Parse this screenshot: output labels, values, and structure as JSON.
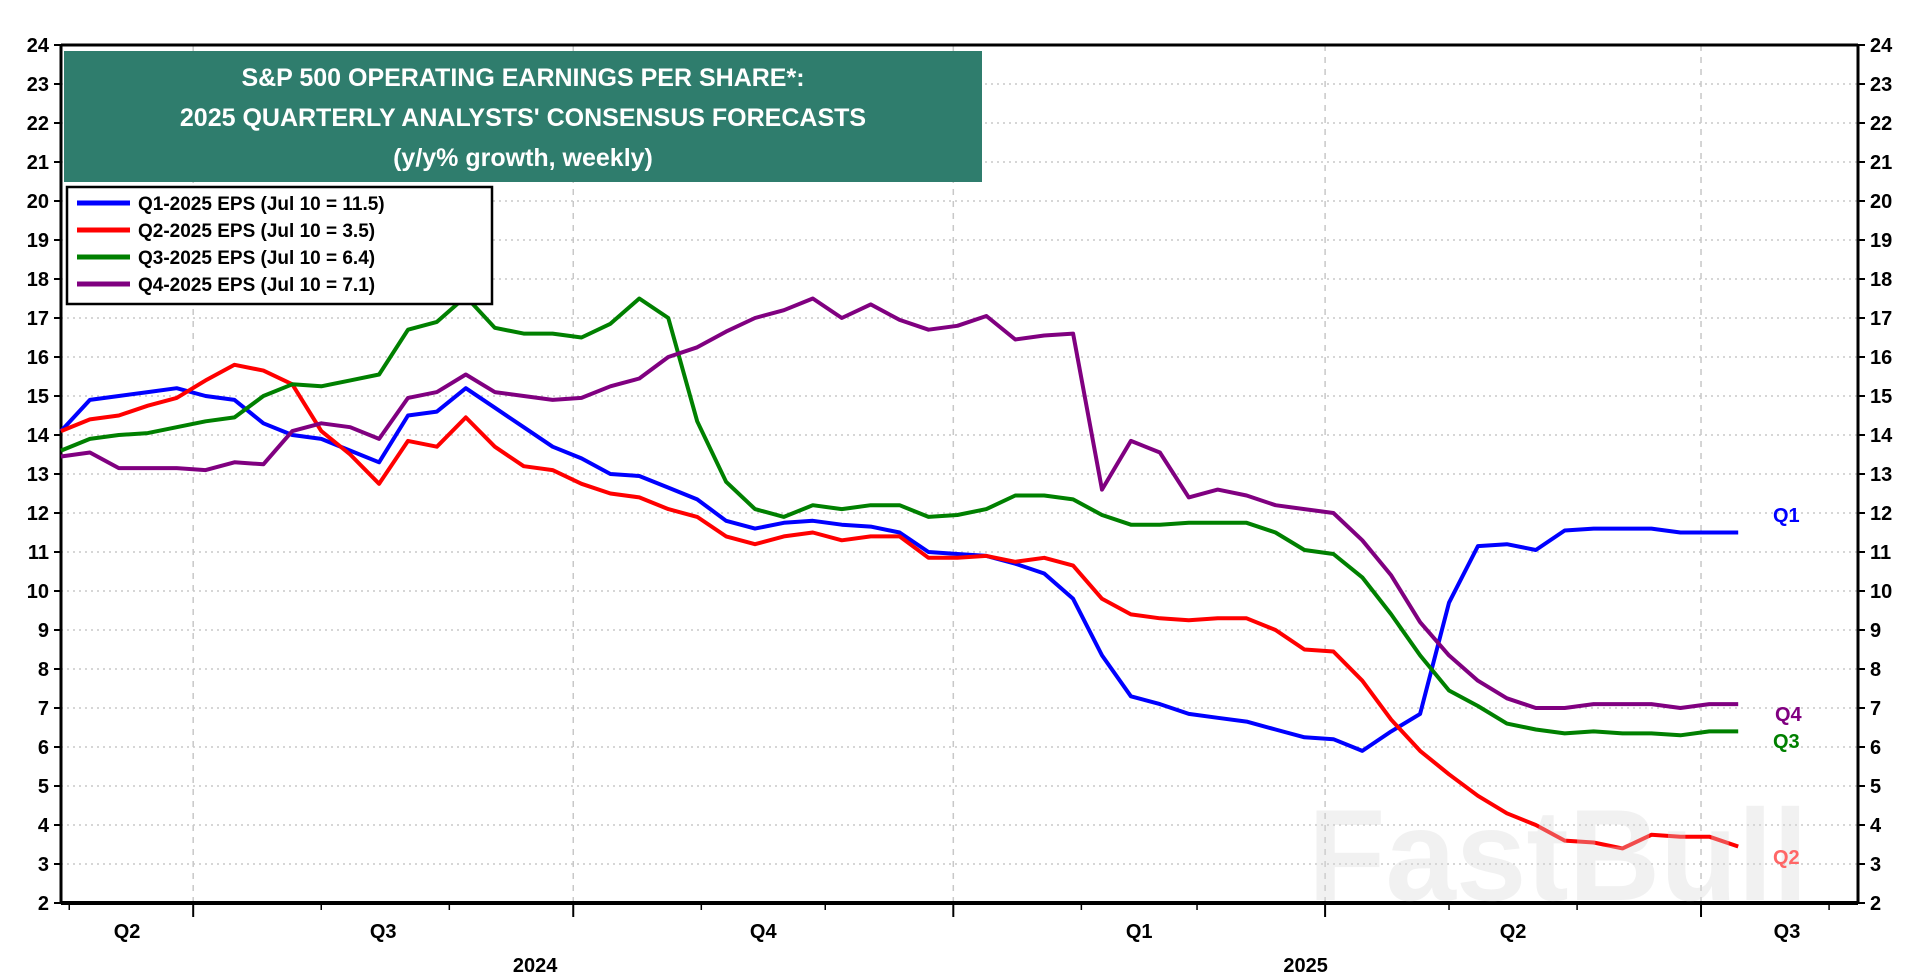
{
  "chart_data": {
    "type": "line",
    "title": [
      "S&P 500 OPERATING EARNINGS PER SHARE*:",
      "2025 QUARTERLY ANALYSTS' CONSENSUS FORECASTS",
      "(y/y% growth, weekly)"
    ],
    "xlabel": "",
    "ylabel": "",
    "ylim": [
      2,
      24
    ],
    "yticks": [
      "2",
      "3",
      "4",
      "5",
      "6",
      "7",
      "8",
      "9",
      "10",
      "11",
      "12",
      "13",
      "14",
      "15",
      "16",
      "17",
      "18",
      "19",
      "20",
      "21",
      "22",
      "23",
      "24"
    ],
    "xlim": [
      "2024-05-30",
      "2025-08-08"
    ],
    "grid": true,
    "legend_position": "top-left",
    "x_quarter_labels": [
      {
        "label": "Q2",
        "from": "2024-04-01",
        "to": "2024-07-01"
      },
      {
        "label": "Q3",
        "from": "2024-07-01",
        "to": "2024-10-01"
      },
      {
        "label": "Q4",
        "from": "2024-10-01",
        "to": "2025-01-01"
      },
      {
        "label": "Q1",
        "from": "2025-01-01",
        "to": "2025-04-01"
      },
      {
        "label": "Q2",
        "from": "2025-04-01",
        "to": "2025-07-01"
      },
      {
        "label": "Q3",
        "from": "2025-07-01",
        "to": "2025-10-01"
      }
    ],
    "x_year_labels": [
      {
        "label": "2024",
        "from": "2024-04-01",
        "to": "2025-01-01"
      },
      {
        "label": "2025",
        "from": "2025-01-01",
        "to": "2025-08-08"
      }
    ],
    "x_start": "2024-05-30",
    "x_step_days": 7,
    "series": [
      {
        "name": "Q1-2025 EPS (Jul 10 = 11.5)",
        "end_label": "Q1",
        "color": "#0000ff",
        "values": [
          14.1,
          14.9,
          15.0,
          15.1,
          15.2,
          15.0,
          14.9,
          14.3,
          14.0,
          13.9,
          13.6,
          13.3,
          14.5,
          14.6,
          15.2,
          14.7,
          14.2,
          13.7,
          13.4,
          13.0,
          12.95,
          12.65,
          12.35,
          11.8,
          11.6,
          11.75,
          11.8,
          11.7,
          11.65,
          11.5,
          11.0,
          10.95,
          10.9,
          10.7,
          10.45,
          9.8,
          8.35,
          7.3,
          7.1,
          6.85,
          6.75,
          6.65,
          6.45,
          6.25,
          6.2,
          5.9,
          6.4,
          6.85,
          9.7,
          11.15,
          11.2,
          11.05,
          11.55,
          11.6,
          11.6,
          11.6,
          11.5,
          11.5,
          11.5
        ]
      },
      {
        "name": "Q2-2025 EPS (Jul 10 = 3.5)",
        "end_label": "Q2",
        "color": "#ff0000",
        "values": [
          14.1,
          14.4,
          14.5,
          14.75,
          14.95,
          15.4,
          15.8,
          15.65,
          15.3,
          14.1,
          13.5,
          12.75,
          13.85,
          13.7,
          14.45,
          13.7,
          13.2,
          13.1,
          12.75,
          12.5,
          12.4,
          12.1,
          11.9,
          11.4,
          11.2,
          11.4,
          11.5,
          11.3,
          11.4,
          11.4,
          10.85,
          10.85,
          10.9,
          10.75,
          10.85,
          10.65,
          9.8,
          9.4,
          9.3,
          9.25,
          9.3,
          9.3,
          9.0,
          8.5,
          8.45,
          7.7,
          6.7,
          5.9,
          5.3,
          4.75,
          4.3,
          4.0,
          3.6,
          3.55,
          3.4,
          3.75,
          3.7,
          3.7,
          3.45
        ]
      },
      {
        "name": "Q3-2025 EPS (Jul 10 = 6.4)",
        "end_label": "Q3",
        "color": "#008000",
        "values": [
          13.6,
          13.9,
          14.0,
          14.05,
          14.2,
          14.35,
          14.45,
          15.0,
          15.3,
          15.25,
          15.4,
          15.55,
          16.7,
          16.9,
          17.55,
          16.75,
          16.6,
          16.6,
          16.5,
          16.85,
          17.5,
          17.0,
          14.35,
          12.8,
          12.1,
          11.9,
          12.2,
          12.1,
          12.2,
          12.2,
          11.9,
          11.95,
          12.1,
          12.45,
          12.45,
          12.35,
          11.95,
          11.7,
          11.7,
          11.75,
          11.75,
          11.75,
          11.5,
          11.05,
          10.95,
          10.35,
          9.4,
          8.35,
          7.45,
          7.05,
          6.6,
          6.45,
          6.35,
          6.4,
          6.35,
          6.35,
          6.3,
          6.4,
          6.4
        ]
      },
      {
        "name": "Q4-2025 EPS (Jul 10 = 7.1)",
        "end_label": "Q4",
        "color": "#800080",
        "values": [
          13.45,
          13.55,
          13.15,
          13.15,
          13.15,
          13.1,
          13.3,
          13.25,
          14.1,
          14.3,
          14.2,
          13.9,
          14.95,
          15.1,
          15.55,
          15.1,
          15.0,
          14.9,
          14.95,
          15.25,
          15.45,
          16.0,
          16.25,
          16.65,
          17.0,
          17.2,
          17.5,
          17.0,
          17.35,
          16.95,
          16.7,
          16.8,
          17.05,
          16.45,
          16.55,
          16.6,
          12.6,
          13.85,
          13.55,
          12.4,
          12.6,
          12.45,
          12.2,
          12.1,
          12.0,
          11.3,
          10.4,
          9.2,
          8.35,
          7.7,
          7.25,
          7.0,
          7.0,
          7.1,
          7.1,
          7.1,
          7.0,
          7.1,
          7.1
        ]
      }
    ],
    "title_box_color": "#2f7d6d",
    "watermark": "FastBull"
  }
}
